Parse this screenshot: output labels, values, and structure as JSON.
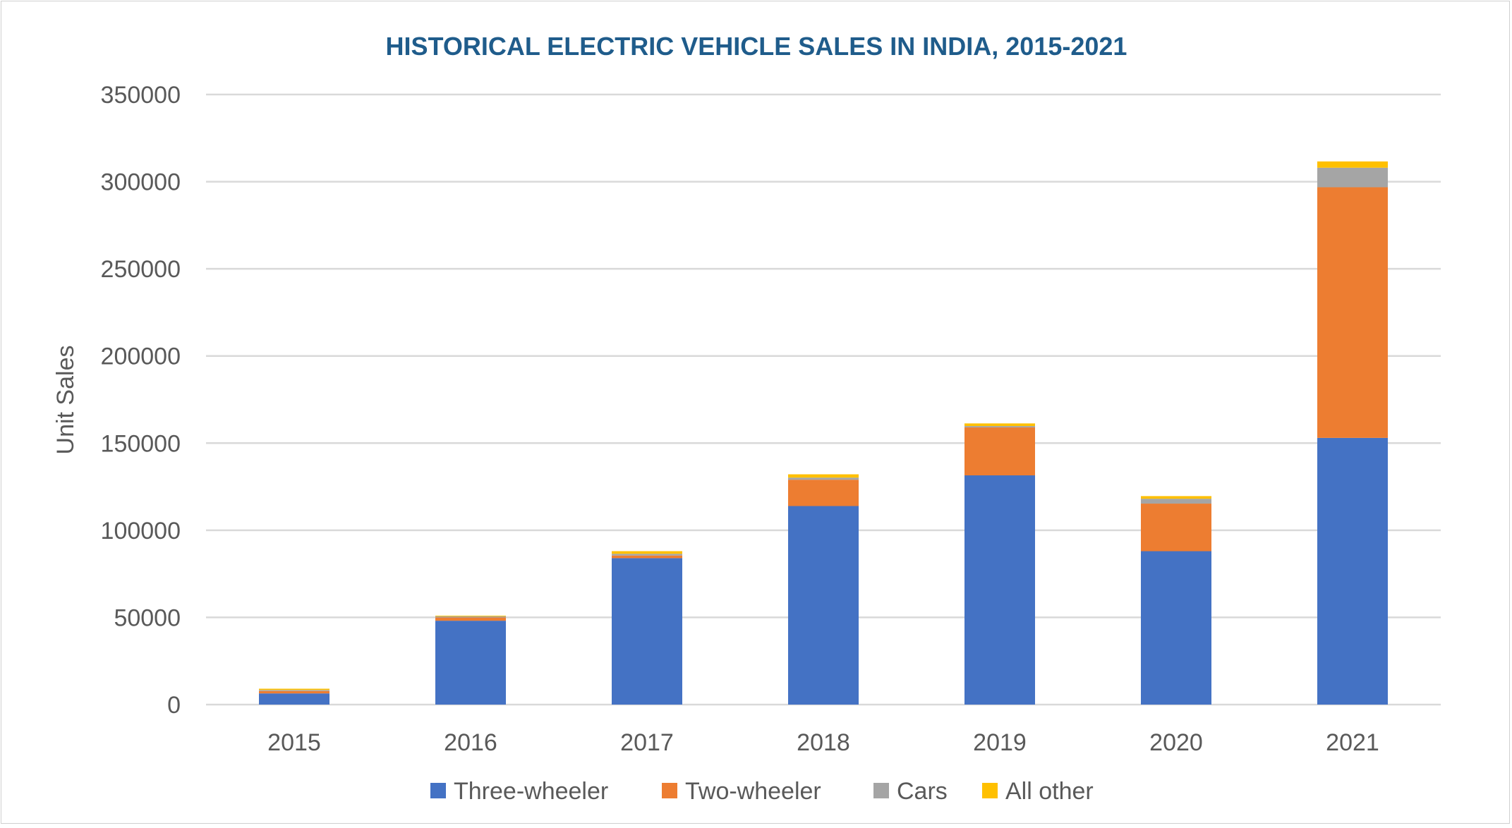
{
  "chart_data": {
    "type": "bar",
    "stacked": true,
    "title": "HISTORICAL ELECTRIC VEHICLE SALES IN INDIA, 2015-2021",
    "xlabel": "",
    "ylabel": "Unit Sales",
    "ylim": [
      0,
      350000
    ],
    "yticks": [
      0,
      50000,
      100000,
      150000,
      200000,
      250000,
      300000,
      350000
    ],
    "grid": true,
    "legend_position": "bottom",
    "categories": [
      "2015",
      "2016",
      "2017",
      "2018",
      "2019",
      "2020",
      "2021"
    ],
    "series": [
      {
        "name": "Three-wheeler",
        "color": "#4472C4",
        "values": [
          6400,
          48100,
          84000,
          113900,
          131500,
          88000,
          153000
        ]
      },
      {
        "name": "Two-wheeler",
        "color": "#ED7D31",
        "values": [
          1400,
          1900,
          1500,
          15100,
          27500,
          27300,
          143800
        ]
      },
      {
        "name": "Cars",
        "color": "#A5A5A5",
        "values": [
          600,
          600,
          1000,
          1200,
          800,
          2800,
          11200
        ]
      },
      {
        "name": "All other",
        "color": "#FFC000",
        "values": [
          700,
          400,
          1500,
          1900,
          1500,
          1500,
          3600
        ]
      }
    ],
    "title_color": "#1F5C8B"
  }
}
